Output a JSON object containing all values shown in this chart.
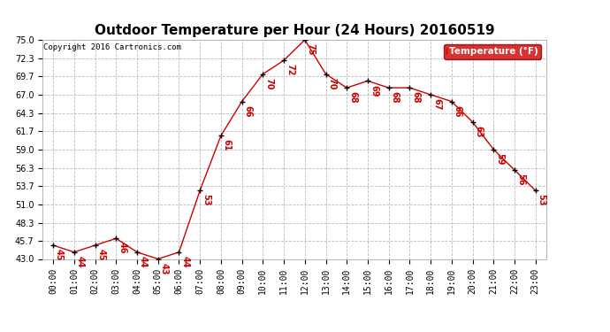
{
  "title": "Outdoor Temperature per Hour (24 Hours) 20160519",
  "copyright": "Copyright 2016 Cartronics.com",
  "legend_label": "Temperature (°F)",
  "hours": [
    "00:00",
    "01:00",
    "02:00",
    "03:00",
    "04:00",
    "05:00",
    "06:00",
    "07:00",
    "08:00",
    "09:00",
    "10:00",
    "11:00",
    "12:00",
    "13:00",
    "14:00",
    "15:00",
    "16:00",
    "17:00",
    "18:00",
    "19:00",
    "20:00",
    "21:00",
    "22:00",
    "23:00"
  ],
  "temps": [
    45,
    44,
    45,
    46,
    44,
    43,
    44,
    53,
    61,
    66,
    70,
    72,
    75,
    70,
    68,
    69,
    68,
    68,
    67,
    66,
    63,
    59,
    56,
    53
  ],
  "ylim": [
    43.0,
    75.0
  ],
  "yticks": [
    43.0,
    45.7,
    48.3,
    51.0,
    53.7,
    56.3,
    59.0,
    61.7,
    64.3,
    67.0,
    69.7,
    72.3,
    75.0
  ],
  "ytick_labels": [
    "43.0",
    "45.7",
    "48.3",
    "51.0",
    "53.7",
    "56.3",
    "59.0",
    "61.7",
    "64.3",
    "67.0",
    "69.7",
    "72.3",
    "75.0"
  ],
  "line_color": "#cc0000",
  "marker_color": "#000000",
  "label_color": "#cc0000",
  "bg_color": "#ffffff",
  "grid_color": "#bbbbbb",
  "title_fontsize": 11,
  "axis_fontsize": 7,
  "label_fontsize": 7,
  "legend_bg": "#cc0000",
  "legend_text_color": "#ffffff"
}
